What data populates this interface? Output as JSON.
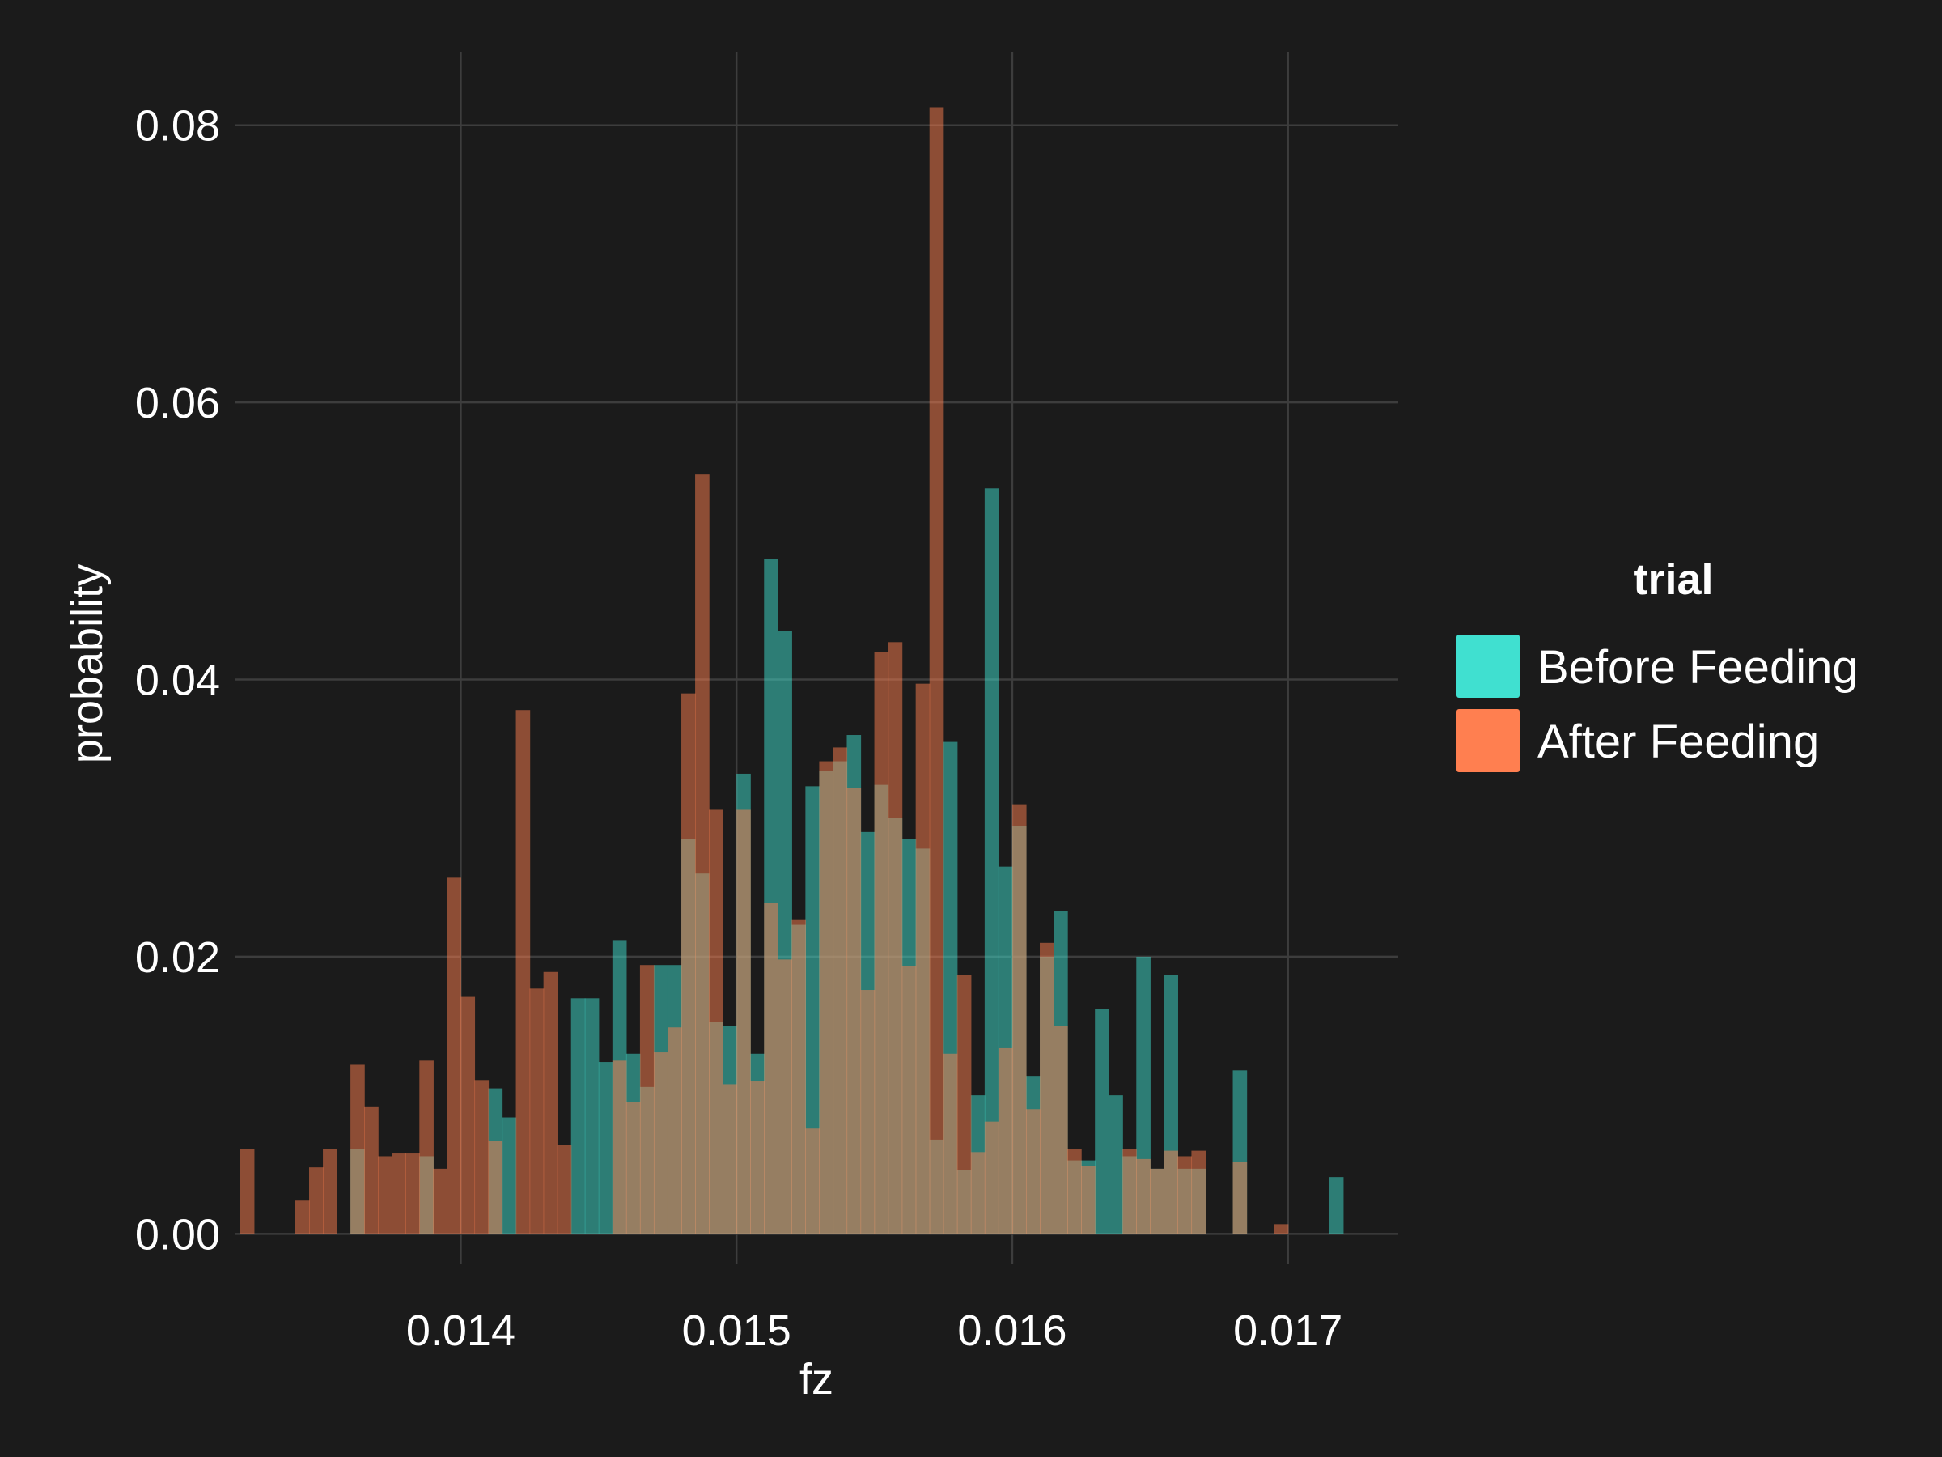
{
  "chart_data": {
    "type": "histogram",
    "xlabel": "fz",
    "ylabel": "probability",
    "xlim": [
      0.01318,
      0.0174
    ],
    "ylim": [
      -0.0022,
      0.0853
    ],
    "x_ticks": [
      0.014,
      0.015,
      0.016,
      0.017
    ],
    "x_tick_labels": [
      "0.014",
      "0.015",
      "0.016",
      "0.017"
    ],
    "y_ticks": [
      0.0,
      0.02,
      0.04,
      0.06,
      0.08
    ],
    "y_tick_labels": [
      "0.00",
      "0.02",
      "0.04",
      "0.06",
      "0.08"
    ],
    "grid": true,
    "bin_width": 5e-05,
    "legend": {
      "title": "trial",
      "placement": "right",
      "entries": [
        {
          "label": "Before Feeding",
          "color": "#40E0D0"
        },
        {
          "label": "After Feeding",
          "color": "#FF7F50"
        }
      ]
    },
    "series": [
      {
        "name": "Before Feeding",
        "color": "#40E0D0",
        "bins": [
          [
            0.0136,
            0.0061
          ],
          [
            0.01385,
            0.0056
          ],
          [
            0.0141,
            0.0105
          ],
          [
            0.01415,
            0.0084
          ],
          [
            0.0144,
            0.017
          ],
          [
            0.01445,
            0.017
          ],
          [
            0.0145,
            0.0124
          ],
          [
            0.01455,
            0.0212
          ],
          [
            0.0146,
            0.013
          ],
          [
            0.01465,
            0.0106
          ],
          [
            0.0147,
            0.0194
          ],
          [
            0.01475,
            0.0194
          ],
          [
            0.0148,
            0.0285
          ],
          [
            0.01485,
            0.026
          ],
          [
            0.0149,
            0.0153
          ],
          [
            0.01495,
            0.015
          ],
          [
            0.015,
            0.0332
          ],
          [
            0.01505,
            0.013
          ],
          [
            0.0151,
            0.0487
          ],
          [
            0.01515,
            0.0435
          ],
          [
            0.0152,
            0.0223
          ],
          [
            0.01525,
            0.0323
          ],
          [
            0.0153,
            0.0334
          ],
          [
            0.01535,
            0.0341
          ],
          [
            0.0154,
            0.036
          ],
          [
            0.01545,
            0.029
          ],
          [
            0.0155,
            0.0324
          ],
          [
            0.01555,
            0.03
          ],
          [
            0.0156,
            0.0285
          ],
          [
            0.01565,
            0.0278
          ],
          [
            0.0157,
            0.0068
          ],
          [
            0.01575,
            0.0355
          ],
          [
            0.0158,
            0.0046
          ],
          [
            0.01585,
            0.01
          ],
          [
            0.0159,
            0.0538
          ],
          [
            0.01595,
            0.0265
          ],
          [
            0.016,
            0.0294
          ],
          [
            0.01605,
            0.0114
          ],
          [
            0.0161,
            0.02
          ],
          [
            0.01615,
            0.0233
          ],
          [
            0.0162,
            0.0053
          ],
          [
            0.01625,
            0.0053
          ],
          [
            0.0163,
            0.0162
          ],
          [
            0.01635,
            0.01
          ],
          [
            0.0164,
            0.0056
          ],
          [
            0.01645,
            0.02
          ],
          [
            0.0165,
            0.0047
          ],
          [
            0.01655,
            0.0187
          ],
          [
            0.0166,
            0.0047
          ],
          [
            0.01665,
            0.0047
          ],
          [
            0.0168,
            0.0118
          ],
          [
            0.01715,
            0.0041
          ]
        ]
      },
      {
        "name": "After Feeding",
        "color": "#FF7F50",
        "bins": [
          [
            0.0132,
            0.0061
          ],
          [
            0.0134,
            0.0024
          ],
          [
            0.01345,
            0.0048
          ],
          [
            0.0135,
            0.0061
          ],
          [
            0.0136,
            0.0122
          ],
          [
            0.01365,
            0.0092
          ],
          [
            0.0137,
            0.0056
          ],
          [
            0.01375,
            0.0058
          ],
          [
            0.0138,
            0.0058
          ],
          [
            0.01385,
            0.0125
          ],
          [
            0.0139,
            0.0047
          ],
          [
            0.01395,
            0.0257
          ],
          [
            0.014,
            0.0171
          ],
          [
            0.01405,
            0.0111
          ],
          [
            0.0141,
            0.0067
          ],
          [
            0.0142,
            0.0378
          ],
          [
            0.01425,
            0.0177
          ],
          [
            0.0143,
            0.0189
          ],
          [
            0.01435,
            0.0064
          ],
          [
            0.01455,
            0.0125
          ],
          [
            0.0146,
            0.0095
          ],
          [
            0.01465,
            0.0194
          ],
          [
            0.0147,
            0.0131
          ],
          [
            0.01475,
            0.0149
          ],
          [
            0.0148,
            0.039
          ],
          [
            0.01485,
            0.0548
          ],
          [
            0.0149,
            0.0306
          ],
          [
            0.01495,
            0.0108
          ],
          [
            0.015,
            0.0306
          ],
          [
            0.01505,
            0.011
          ],
          [
            0.0151,
            0.0239
          ],
          [
            0.01515,
            0.0198
          ],
          [
            0.0152,
            0.0227
          ],
          [
            0.01525,
            0.0076
          ],
          [
            0.0153,
            0.0341
          ],
          [
            0.01535,
            0.0351
          ],
          [
            0.0154,
            0.0322
          ],
          [
            0.01545,
            0.0176
          ],
          [
            0.0155,
            0.042
          ],
          [
            0.01555,
            0.0427
          ],
          [
            0.0156,
            0.0193
          ],
          [
            0.01565,
            0.0397
          ],
          [
            0.0157,
            0.0813
          ],
          [
            0.01575,
            0.013
          ],
          [
            0.0158,
            0.0187
          ],
          [
            0.01585,
            0.0059
          ],
          [
            0.0159,
            0.0081
          ],
          [
            0.01595,
            0.0134
          ],
          [
            0.016,
            0.031
          ],
          [
            0.01605,
            0.009
          ],
          [
            0.0161,
            0.021
          ],
          [
            0.01615,
            0.015
          ],
          [
            0.0162,
            0.0061
          ],
          [
            0.01625,
            0.0049
          ],
          [
            0.0164,
            0.0061
          ],
          [
            0.01645,
            0.0054
          ],
          [
            0.0165,
            0.0047
          ],
          [
            0.01655,
            0.006
          ],
          [
            0.0166,
            0.0056
          ],
          [
            0.01665,
            0.006
          ],
          [
            0.0168,
            0.0052
          ],
          [
            0.01695,
            0.0007
          ]
        ]
      }
    ]
  }
}
